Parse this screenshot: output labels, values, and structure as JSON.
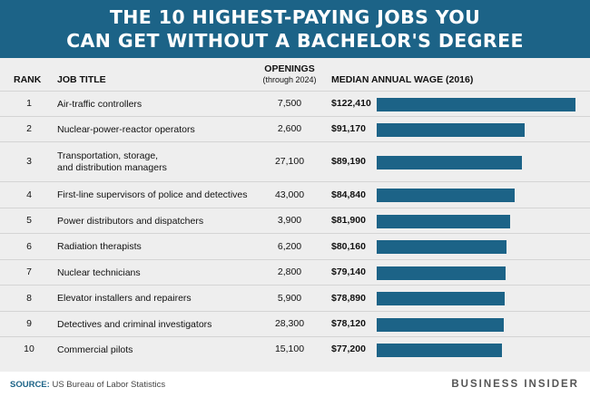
{
  "title_line1": "THE 10 HIGHEST-PAYING JOBS YOU",
  "title_line2": "CAN GET WITHOUT A BACHELOR'S DEGREE",
  "headers": {
    "rank": "RANK",
    "job": "JOB TITLE",
    "openings": "OPENINGS",
    "openings_sub": "(through 2024)",
    "wage": "MEDIAN ANNUAL WAGE (2016)"
  },
  "rows": [
    {
      "rank": "1",
      "job": [
        "Air-traffic controllers"
      ],
      "openings": "7,500",
      "wage": "$122,410"
    },
    {
      "rank": "2",
      "job": [
        "Nuclear-power-reactor operators"
      ],
      "openings": "2,600",
      "wage": "$91,170"
    },
    {
      "rank": "3",
      "job": [
        "Transportation, storage,",
        "and distribution managers"
      ],
      "openings": "27,100",
      "wage": "$89,190"
    },
    {
      "rank": "4",
      "job": [
        "First-line supervisors of police and detectives"
      ],
      "openings": "43,000",
      "wage": "$84,840"
    },
    {
      "rank": "5",
      "job": [
        "Power distributors and dispatchers"
      ],
      "openings": "3,900",
      "wage": "$81,900"
    },
    {
      "rank": "6",
      "job": [
        "Radiation therapists"
      ],
      "openings": "6,200",
      "wage": "$80,160"
    },
    {
      "rank": "7",
      "job": [
        "Nuclear technicians"
      ],
      "openings": "2,800",
      "wage": "$79,140"
    },
    {
      "rank": "8",
      "job": [
        "Elevator installers and repairers"
      ],
      "openings": "5,900",
      "wage": "$78,890"
    },
    {
      "rank": "9",
      "job": [
        "Detectives and criminal investigators"
      ],
      "openings": "28,300",
      "wage": "$78,120"
    },
    {
      "rank": "10",
      "job": [
        "Commercial pilots"
      ],
      "openings": "15,100",
      "wage": "$77,200"
    }
  ],
  "footer": {
    "source_label": "SOURCE:",
    "source_text": " US Bureau of Labor Statistics",
    "brand": "BUSINESS INSIDER"
  },
  "colors": {
    "brand_blue": "#1c6387",
    "table_bg": "#eeeeee"
  },
  "chart_data": {
    "type": "bar",
    "orientation": "horizontal",
    "categories": [
      "Air-traffic controllers",
      "Nuclear-power-reactor operators",
      "Transportation, storage, and distribution managers",
      "First-line supervisors of police and detectives",
      "Power distributors and dispatchers",
      "Radiation therapists",
      "Nuclear technicians",
      "Elevator installers and repairers",
      "Detectives and criminal investigators",
      "Commercial pilots"
    ],
    "values": [
      122410,
      91170,
      89190,
      84840,
      81900,
      80160,
      79140,
      78890,
      78120,
      77200
    ],
    "openings": [
      7500,
      2600,
      27100,
      43000,
      3900,
      6200,
      2800,
      5900,
      28300,
      15100
    ],
    "title": "THE 10 HIGHEST-PAYING JOBS YOU CAN GET WITHOUT A BACHELOR'S DEGREE",
    "value_label": "MEDIAN ANNUAL WAGE (2016)",
    "bar_scale_min": 0,
    "bar_scale_max": 122410
  }
}
